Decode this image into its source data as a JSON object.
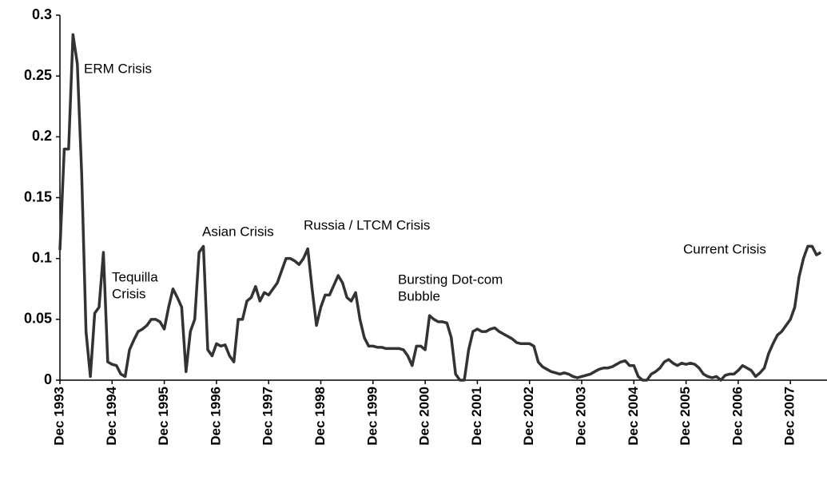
{
  "chart_data": {
    "type": "line",
    "categories": [
      "Dec 1993",
      null,
      null,
      null,
      null,
      null,
      null,
      null,
      null,
      null,
      null,
      null,
      "Dec 1994",
      null,
      null,
      null,
      null,
      null,
      null,
      null,
      null,
      null,
      null,
      null,
      "Dec 1995",
      null,
      null,
      null,
      null,
      null,
      null,
      null,
      null,
      null,
      null,
      null,
      "Dec 1996",
      null,
      null,
      null,
      null,
      null,
      null,
      null,
      null,
      null,
      null,
      null,
      "Dec 1997",
      null,
      null,
      null,
      null,
      null,
      null,
      null,
      null,
      null,
      null,
      null,
      "Dec 1998",
      null,
      null,
      null,
      null,
      null,
      null,
      null,
      null,
      null,
      null,
      null,
      "Dec 1999",
      null,
      null,
      null,
      null,
      null,
      null,
      null,
      null,
      null,
      null,
      null,
      "Dec 2000",
      null,
      null,
      null,
      null,
      null,
      null,
      null,
      null,
      null,
      null,
      null,
      "Dec 2001",
      null,
      null,
      null,
      null,
      null,
      null,
      null,
      null,
      null,
      null,
      null,
      "Dec 2002",
      null,
      null,
      null,
      null,
      null,
      null,
      null,
      null,
      null,
      null,
      null,
      "Dec 2003",
      null,
      null,
      null,
      null,
      null,
      null,
      null,
      null,
      null,
      null,
      null,
      "Dec 2004",
      null,
      null,
      null,
      null,
      null,
      null,
      null,
      null,
      null,
      null,
      null,
      "Dec 2005",
      null,
      null,
      null,
      null,
      null,
      null,
      null,
      null,
      null,
      null,
      null,
      "Dec 2006",
      null,
      null,
      null,
      null,
      null,
      null,
      null,
      null,
      null,
      null,
      null,
      "Dec 2007",
      null,
      null,
      null,
      null,
      null,
      null,
      null
    ],
    "values": [
      0.107,
      0.19,
      0.19,
      0.284,
      0.26,
      0.17,
      0.04,
      0.003,
      0.055,
      0.06,
      0.105,
      0.015,
      0.013,
      0.012,
      0.005,
      0.003,
      0.025,
      0.033,
      0.04,
      0.042,
      0.045,
      0.05,
      0.05,
      0.048,
      0.042,
      0.06,
      0.075,
      0.068,
      0.06,
      0.007,
      0.04,
      0.05,
      0.105,
      0.11,
      0.025,
      0.02,
      0.03,
      0.028,
      0.029,
      0.02,
      0.015,
      0.05,
      0.05,
      0.065,
      0.068,
      0.077,
      0.065,
      0.072,
      0.07,
      0.075,
      0.08,
      0.09,
      0.1,
      0.1,
      0.098,
      0.095,
      0.1,
      0.108,
      0.075,
      0.045,
      0.06,
      0.07,
      0.07,
      0.078,
      0.086,
      0.08,
      0.068,
      0.065,
      0.072,
      0.05,
      0.035,
      0.028,
      0.028,
      0.027,
      0.027,
      0.026,
      0.026,
      0.026,
      0.026,
      0.025,
      0.02,
      0.012,
      0.028,
      0.028,
      0.025,
      0.053,
      0.05,
      0.048,
      0.048,
      0.047,
      0.035,
      0.005,
      0,
      0,
      0.025,
      0.04,
      0.042,
      0.04,
      0.04,
      0.042,
      0.043,
      0.04,
      0.038,
      0.036,
      0.034,
      0.031,
      0.03,
      0.03,
      0.03,
      0.028,
      0.015,
      0.011,
      0.009,
      0.007,
      0.006,
      0.005,
      0.006,
      0.005,
      0.003,
      0.002,
      0.003,
      0.004,
      0.005,
      0.007,
      0.009,
      0.01,
      0.01,
      0.011,
      0.013,
      0.015,
      0.016,
      0.012,
      0.012,
      0.003,
      0,
      0,
      0.005,
      0.007,
      0.01,
      0.015,
      0.017,
      0.014,
      0.012,
      0.014,
      0.013,
      0.014,
      0.013,
      0.01,
      0.005,
      0.003,
      0.002,
      0.003,
      0,
      0.004,
      0.005,
      0.005,
      0.008,
      0.012,
      0.01,
      0.008,
      0.003,
      0.006,
      0.01,
      0.022,
      0.03,
      0.037,
      0.04,
      0.045,
      0.05,
      0.06,
      0.085,
      0.1,
      0.11,
      0.11,
      0.103,
      0.105
    ],
    "color": "#333333",
    "ylim": [
      0,
      0.3
    ],
    "yticks": [
      0,
      0.05,
      0.1,
      0.15,
      0.2,
      0.25,
      0.3
    ],
    "annotations": [
      [
        "ERM Crisis"
      ],
      [
        "Tequilla",
        "Crisis"
      ],
      [
        "Asian Crisis"
      ],
      [
        "Russia / LTCM Crisis"
      ],
      [
        "Bursting Dot-com",
        "Bubble"
      ],
      [
        "Current Crisis"
      ]
    ]
  }
}
